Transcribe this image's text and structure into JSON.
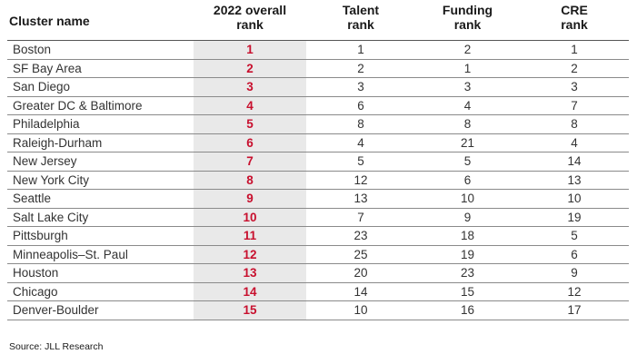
{
  "table": {
    "headers": {
      "name": "Cluster name",
      "overall_line1": "2022 overall",
      "overall_line2": "rank",
      "talent_line1": "Talent",
      "talent_line2": "rank",
      "funding_line1": "Funding",
      "funding_line2": "rank",
      "cre_line1": "CRE",
      "cre_line2": "rank"
    },
    "rows": [
      {
        "name": "Boston",
        "overall": "1",
        "talent": "1",
        "funding": "2",
        "cre": "1"
      },
      {
        "name": "SF Bay Area",
        "overall": "2",
        "talent": "2",
        "funding": "1",
        "cre": "2"
      },
      {
        "name": "San Diego",
        "overall": "3",
        "talent": "3",
        "funding": "3",
        "cre": "3"
      },
      {
        "name": "Greater DC & Baltimore",
        "overall": "4",
        "talent": "6",
        "funding": "4",
        "cre": "7"
      },
      {
        "name": "Philadelphia",
        "overall": "5",
        "talent": "8",
        "funding": "8",
        "cre": "8"
      },
      {
        "name": "Raleigh-Durham",
        "overall": "6",
        "talent": "4",
        "funding": "21",
        "cre": "4"
      },
      {
        "name": "New Jersey",
        "overall": "7",
        "talent": "5",
        "funding": "5",
        "cre": "14"
      },
      {
        "name": "New York City",
        "overall": "8",
        "talent": "12",
        "funding": "6",
        "cre": "13"
      },
      {
        "name": "Seattle",
        "overall": "9",
        "talent": "13",
        "funding": "10",
        "cre": "10"
      },
      {
        "name": "Salt Lake City",
        "overall": "10",
        "talent": "7",
        "funding": "9",
        "cre": "19"
      },
      {
        "name": "Pittsburgh",
        "overall": "11",
        "talent": "23",
        "funding": "18",
        "cre": "5"
      },
      {
        "name": "Minneapolis–St. Paul",
        "overall": "12",
        "talent": "25",
        "funding": "19",
        "cre": "6"
      },
      {
        "name": "Houston",
        "overall": "13",
        "talent": "20",
        "funding": "23",
        "cre": "9"
      },
      {
        "name": "Chicago",
        "overall": "14",
        "talent": "14",
        "funding": "15",
        "cre": "12"
      },
      {
        "name": "Denver-Boulder",
        "overall": "15",
        "talent": "10",
        "funding": "16",
        "cre": "17"
      }
    ]
  },
  "source": "Source: JLL Research",
  "colors": {
    "rank_highlight": "#c8102e",
    "overall_column_bg": "#e9e9e9"
  }
}
